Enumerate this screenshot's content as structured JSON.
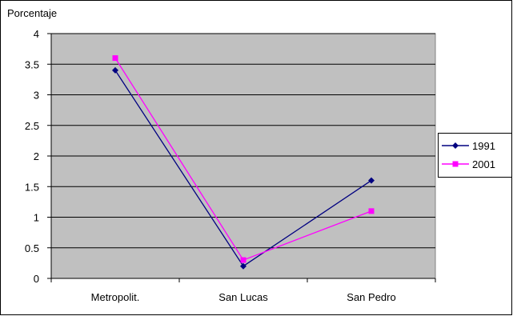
{
  "chart_data": {
    "type": "line",
    "title": "",
    "xlabel": "",
    "ylabel": "Porcentaje",
    "categories": [
      "Metropolit.",
      "San Lucas",
      "San Pedro"
    ],
    "ylim": [
      0,
      4
    ],
    "yticks": [
      "0",
      "0.5",
      "1",
      "1.5",
      "2",
      "2.5",
      "3",
      "3.5",
      "4"
    ],
    "ytick_values": [
      0,
      0.5,
      1,
      1.5,
      2,
      2.5,
      3,
      3.5,
      4
    ],
    "grid": true,
    "plot_background": "#c0c0c0",
    "legend_position": "right",
    "series": [
      {
        "name": "1991",
        "values": [
          3.4,
          0.2,
          1.6
        ],
        "color": "#000080",
        "marker": "diamond"
      },
      {
        "name": "2001",
        "values": [
          3.6,
          0.3,
          1.1
        ],
        "color": "#ff00ff",
        "marker": "square"
      }
    ]
  }
}
